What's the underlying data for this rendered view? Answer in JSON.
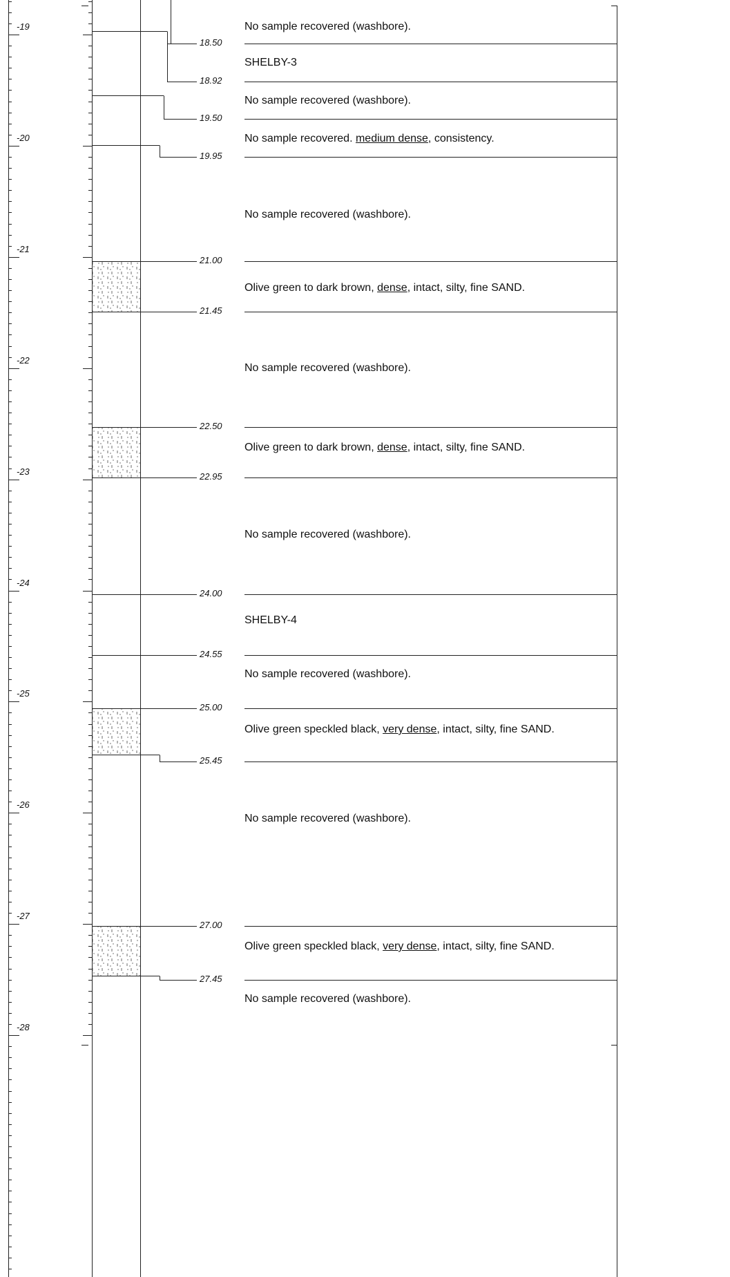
{
  "elevation_scale": {
    "labels": [
      "-19",
      "-20",
      "-21",
      "-22",
      "-23",
      "-24",
      "-25",
      "-26",
      "-27",
      "-28"
    ]
  },
  "intervals": [
    {
      "description": [
        {
          "text": "No sample recovered (washbore)."
        }
      ],
      "depth": "18.50"
    },
    {
      "description": [
        {
          "text": "SHELBY-3"
        }
      ],
      "depth": "18.92"
    },
    {
      "description": [
        {
          "text": "No sample recovered (washbore)."
        }
      ],
      "depth": "19.50"
    },
    {
      "description": [
        {
          "text": "No sample recovered. "
        },
        {
          "text": "medium dense",
          "underline": true
        },
        {
          "text": ", consistency."
        }
      ],
      "depth": "19.95"
    },
    {
      "description": [
        {
          "text": "No sample recovered (washbore)."
        }
      ],
      "depth": "21.00"
    },
    {
      "description": [
        {
          "text": "Olive green to dark brown, "
        },
        {
          "text": "dense",
          "underline": true
        },
        {
          "text": ", intact, silty, fine SAND."
        }
      ],
      "depth": "21.45"
    },
    {
      "description": [
        {
          "text": "No sample recovered (washbore)."
        }
      ],
      "depth": "22.50"
    },
    {
      "description": [
        {
          "text": "Olive green to dark brown, "
        },
        {
          "text": "dense",
          "underline": true
        },
        {
          "text": ", intact, silty, fine SAND."
        }
      ],
      "depth": "22.95"
    },
    {
      "description": [
        {
          "text": "No sample recovered (washbore)."
        }
      ],
      "depth": "24.00"
    },
    {
      "description": [
        {
          "text": "SHELBY-4"
        }
      ],
      "depth": "24.55"
    },
    {
      "description": [
        {
          "text": "No sample recovered (washbore)."
        }
      ],
      "depth": "25.00"
    },
    {
      "description": [
        {
          "text": "Olive green speckled black, "
        },
        {
          "text": "very dense",
          "underline": true
        },
        {
          "text": ", intact, silty, fine SAND."
        }
      ],
      "depth": "25.45"
    },
    {
      "description": [
        {
          "text": "No sample recovered (washbore)."
        }
      ],
      "depth": "27.00"
    },
    {
      "description": [
        {
          "text": "Olive green speckled black, "
        },
        {
          "text": "very dense",
          "underline": true
        },
        {
          "text": ", intact, silty, fine SAND."
        }
      ],
      "depth": "27.45"
    },
    {
      "description": [
        {
          "text": "No sample recovered (washbore)."
        }
      ]
    }
  ]
}
